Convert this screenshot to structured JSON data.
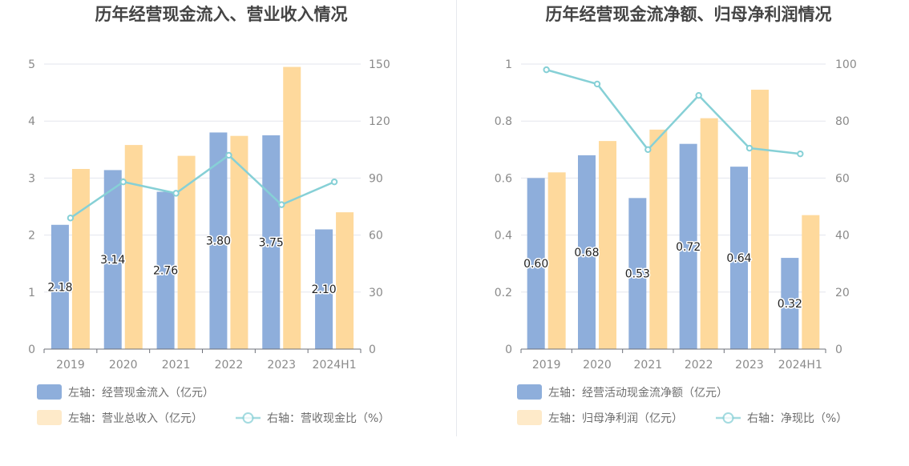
{
  "chart_data": [
    {
      "type": "bar",
      "title": "历年经营现金流入、营业收入情况",
      "categories": [
        "2019",
        "2020",
        "2021",
        "2022",
        "2023",
        "2024H1"
      ],
      "left_axis": {
        "ticks": [
          "0",
          "1",
          "2",
          "3",
          "4",
          "5"
        ],
        "ylim": [
          0,
          5
        ]
      },
      "right_axis": {
        "ticks": [
          "0",
          "30",
          "60",
          "90",
          "120",
          "150"
        ],
        "ylim": [
          0,
          150
        ]
      },
      "series": [
        {
          "name": "左轴：经营现金流入（亿元）",
          "kind": "bar",
          "axis": "left",
          "color": "#8eaedb",
          "values": [
            2.18,
            3.14,
            2.76,
            3.8,
            3.75,
            2.1
          ],
          "labels": [
            "2.18",
            "3.14",
            "2.76",
            "3.80",
            "3.75",
            "2.10"
          ]
        },
        {
          "name": "左轴：营业总收入（亿元）",
          "kind": "bar",
          "axis": "left",
          "color": "#fed99c",
          "values": [
            3.16,
            3.58,
            3.39,
            3.74,
            4.95,
            2.4
          ]
        },
        {
          "name": "右轴：营收现金比（%）",
          "kind": "line",
          "axis": "right",
          "color": "#86d0d6",
          "values": [
            69,
            88,
            82,
            102,
            76,
            88
          ]
        }
      ]
    },
    {
      "type": "bar",
      "title": "历年经营现金流净额、归母净利润情况",
      "categories": [
        "2019",
        "2020",
        "2021",
        "2022",
        "2023",
        "2024H1"
      ],
      "left_axis": {
        "ticks": [
          "0",
          "0.2",
          "0.4",
          "0.6",
          "0.8",
          "1"
        ],
        "ylim": [
          0,
          1
        ]
      },
      "right_axis": {
        "ticks": [
          "0",
          "20",
          "40",
          "60",
          "80",
          "100"
        ],
        "ylim": [
          0,
          100
        ]
      },
      "series": [
        {
          "name": "左轴：经营活动现金流净额（亿元）",
          "kind": "bar",
          "axis": "left",
          "color": "#8eaedb",
          "values": [
            0.6,
            0.68,
            0.53,
            0.72,
            0.64,
            0.32
          ],
          "labels": [
            "0.60",
            "0.68",
            "0.53",
            "0.72",
            "0.64",
            "0.32"
          ]
        },
        {
          "name": "左轴：归母净利润（亿元）",
          "kind": "bar",
          "axis": "left",
          "color": "#fed99c",
          "values": [
            0.62,
            0.73,
            0.77,
            0.81,
            0.91,
            0.47
          ]
        },
        {
          "name": "右轴：净现比（%）",
          "kind": "line",
          "axis": "right",
          "color": "#86d0d6",
          "values": [
            98,
            93,
            70,
            89,
            70.5,
            68.5
          ]
        }
      ]
    }
  ]
}
